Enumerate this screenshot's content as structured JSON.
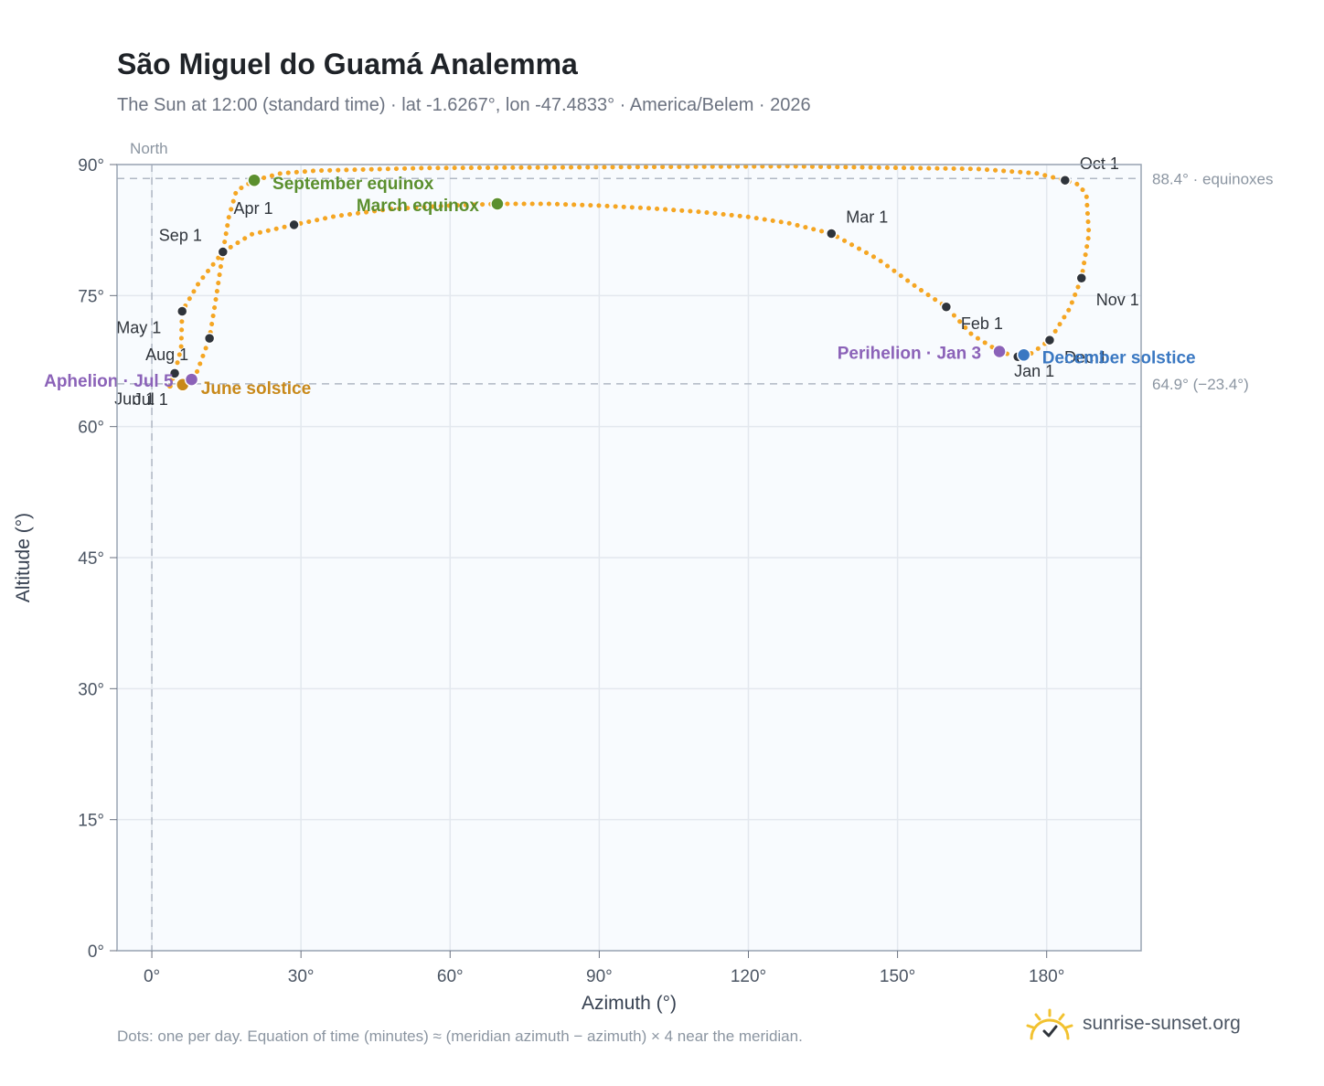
{
  "title": "São Miguel do Guamá Analemma",
  "subtitle": "The Sun at 12:00 (standard time) · lat -1.6267°, lon -47.4833° · America/Belem · 2026",
  "footnote": "Dots: one per day. Equation of time (minutes) ≈ (meridian azimuth − azimuth) × 4 near the meridian.",
  "brand": "sunrise-sunset.org",
  "colors": {
    "path": "#f5a623",
    "month_marker": "#2f343b",
    "equinox": "#5b8f2e",
    "solstice_june": "#c8891a",
    "solstice_december": "#3a78c2",
    "apsis": "#8b62b8",
    "plot_bg": "#f8fbfe"
  },
  "chart_data": {
    "type": "scatter",
    "title": "São Miguel do Guamá Analemma",
    "xlabel": "Azimuth (°)",
    "ylabel": "Altitude (°)",
    "xlim": [
      -7,
      199
    ],
    "ylim": [
      0,
      90
    ],
    "x_ticks": [
      {
        "value": 0,
        "label": "0°"
      },
      {
        "value": 30,
        "label": "30°"
      },
      {
        "value": 60,
        "label": "60°"
      },
      {
        "value": 90,
        "label": "90°"
      },
      {
        "value": 120,
        "label": "120°"
      },
      {
        "value": 150,
        "label": "150°"
      },
      {
        "value": 180,
        "label": "180°"
      }
    ],
    "y_ticks": [
      {
        "value": 0,
        "label": "0°"
      },
      {
        "value": 15,
        "label": "15°"
      },
      {
        "value": 30,
        "label": "30°"
      },
      {
        "value": 45,
        "label": "45°"
      },
      {
        "value": 60,
        "label": "60°"
      },
      {
        "value": 75,
        "label": "75°"
      },
      {
        "value": 90,
        "label": "90°"
      }
    ],
    "grid": true,
    "reference_lines": [
      {
        "axis": "y",
        "value": 88.4,
        "label": "88.4° · equinoxes"
      },
      {
        "axis": "y",
        "value": 64.9,
        "label": "64.9° (−23.4°)"
      },
      {
        "axis": "x",
        "value": 0,
        "label": "North"
      }
    ],
    "path": [
      [
        3.6,
        64.6
      ],
      [
        4.6,
        66.1
      ],
      [
        5.9,
        69.0
      ],
      [
        6.1,
        73.2
      ],
      [
        9.5,
        76.5
      ],
      [
        14.3,
        80.0
      ],
      [
        20.0,
        82.0
      ],
      [
        28.6,
        83.1
      ],
      [
        37.0,
        84.1
      ],
      [
        48.0,
        84.9
      ],
      [
        60.0,
        85.3
      ],
      [
        69.5,
        85.5
      ],
      [
        80.0,
        85.5
      ],
      [
        90.0,
        85.3
      ],
      [
        100.0,
        85.0
      ],
      [
        110.0,
        84.6
      ],
      [
        120.0,
        84.0
      ],
      [
        128.0,
        83.3
      ],
      [
        136.7,
        82.1
      ],
      [
        146.0,
        79.2
      ],
      [
        154.0,
        75.9
      ],
      [
        159.8,
        73.7
      ],
      [
        165.0,
        70.5
      ],
      [
        170.5,
        68.6
      ],
      [
        174.0,
        68.0
      ],
      [
        177.0,
        68.4
      ],
      [
        180.6,
        69.9
      ],
      [
        184.6,
        73.5
      ],
      [
        187.0,
        77.0
      ],
      [
        188.5,
        82.0
      ],
      [
        188.0,
        86.5
      ],
      [
        186.5,
        87.7
      ],
      [
        183.7,
        88.2
      ],
      [
        178.0,
        89.0
      ],
      [
        166.0,
        89.5
      ],
      [
        128.0,
        89.8
      ],
      [
        55.0,
        89.6
      ],
      [
        33.0,
        89.3
      ],
      [
        26.0,
        89.0
      ],
      [
        20.6,
        88.2
      ],
      [
        17.0,
        87.0
      ],
      [
        15.5,
        84.0
      ],
      [
        14.3,
        80.0
      ],
      [
        13.0,
        75.0
      ],
      [
        11.6,
        70.1
      ],
      [
        8.5,
        65.4
      ],
      [
        6.0,
        64.9
      ],
      [
        3.6,
        64.6
      ]
    ],
    "months": [
      {
        "label": "Jan 1",
        "x": 174.2,
        "y": 68.0
      },
      {
        "label": "Feb 1",
        "x": 159.8,
        "y": 73.7
      },
      {
        "label": "Mar 1",
        "x": 136.7,
        "y": 82.1
      },
      {
        "label": "Apr 1",
        "x": 28.6,
        "y": 83.1
      },
      {
        "label": "May 1",
        "x": 6.1,
        "y": 73.2
      },
      {
        "label": "Jun 1",
        "x": 4.6,
        "y": 66.1
      },
      {
        "label": "Jul 1",
        "x": 6.2,
        "y": 64.8
      },
      {
        "label": "Aug 1",
        "x": 11.6,
        "y": 70.1
      },
      {
        "label": "Sep 1",
        "x": 14.3,
        "y": 80.0
      },
      {
        "label": "Oct 1",
        "x": 183.7,
        "y": 88.2
      },
      {
        "label": "Nov 1",
        "x": 187.0,
        "y": 77.0
      },
      {
        "label": "Dec 1",
        "x": 180.6,
        "y": 69.9
      }
    ],
    "events": [
      {
        "label": "September equinox",
        "x": 20.6,
        "y": 88.2,
        "color": "#5b8f2e"
      },
      {
        "label": "March equinox",
        "x": 69.5,
        "y": 85.5,
        "color": "#5b8f2e"
      },
      {
        "label": "June solstice",
        "x": 6.2,
        "y": 64.8,
        "color": "#c8891a"
      },
      {
        "label": "December solstice",
        "x": 175.4,
        "y": 68.2,
        "color": "#3a78c2"
      },
      {
        "label": "Perihelion · Jan 3",
        "x": 170.5,
        "y": 68.6,
        "color": "#8b62b8"
      },
      {
        "label": "Aphelion · Jul 5",
        "x": 8.0,
        "y": 65.4,
        "color": "#8b62b8"
      }
    ]
  }
}
